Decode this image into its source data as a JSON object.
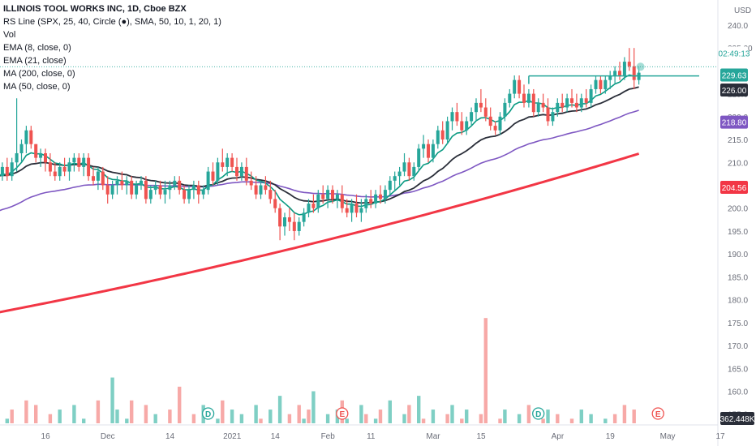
{
  "header": {
    "symbol_title": "ILLINOIS TOOL WORKS INC, 1D, Cboe BZX",
    "indicators": [
      "RS Line (SPX, 25, 40, Circle (●), SMA, 50, 10, 1, 20, 1)",
      "Vol",
      "EMA (8, close, 0)",
      "EMA (21, close)",
      "MA (200, close, 0)",
      "MA (50, close, 0)"
    ]
  },
  "axis": {
    "currency": "USD",
    "price_ticks": [
      "240.0",
      "235.00",
      "230.0",
      "225.0",
      "220.0",
      "215.0",
      "210.0",
      "205.0",
      "200.0",
      "195.0",
      "190.0",
      "185.0",
      "180.0",
      "175.0",
      "170.0",
      "165.0",
      "160.0",
      "155.0"
    ],
    "price_tick_values": [
      240,
      235,
      230,
      225,
      220,
      215,
      210,
      205,
      200,
      195,
      190,
      185,
      180,
      175,
      170,
      165,
      160,
      155
    ],
    "date_ticks": [
      "v",
      "16",
      "Dec",
      "14",
      "2021",
      "14",
      "Feb",
      "11",
      "Mar",
      "15",
      "Apr",
      "19",
      "May",
      "17"
    ],
    "date_tick_bars": [
      -1,
      9,
      22,
      35,
      48,
      57,
      68,
      77,
      90,
      100,
      116,
      127,
      139,
      150
    ]
  },
  "price_labels": {
    "countdown": "02:49:13",
    "last_price": "229.63",
    "ema21": "226.00",
    "ma50": "218.80",
    "ma200": "204.56",
    "volume": "362.448K"
  },
  "event_markers": [
    {
      "label": "D",
      "bar": 44
    },
    {
      "label": "E",
      "bar": 72
    },
    {
      "label": "D",
      "bar": 113
    },
    {
      "label": "E",
      "bar": 138
    }
  ],
  "colors": {
    "up": "#26a69a",
    "down": "#ef5350",
    "vol_up": "#7fcfc4",
    "vol_down": "#f7a9a7",
    "ema8": "#089981",
    "ema21": "#2a2e39",
    "ma50": "#7e57c2",
    "ma200": "#f23645",
    "resistance": "#26a69a"
  },
  "chart_data": {
    "type": "candlestick",
    "x_axis": "trading days, Nov 2020 – May 2021",
    "y_range": [
      153,
      243
    ],
    "resistance_level": 228.9,
    "ohlc": [
      [
        206,
        208,
        204,
        207
      ],
      [
        207,
        210,
        206,
        209
      ],
      [
        209,
        211,
        206,
        207
      ],
      [
        207,
        211,
        206,
        210
      ],
      [
        210,
        224,
        208,
        212
      ],
      [
        212,
        215,
        210,
        214
      ],
      [
        214,
        218,
        212,
        217
      ],
      [
        217,
        218,
        213,
        214
      ],
      [
        214,
        214,
        210,
        211
      ],
      [
        211,
        213,
        209,
        212
      ],
      [
        212,
        213,
        208,
        210
      ],
      [
        210,
        212,
        207,
        208
      ],
      [
        208,
        210,
        206,
        207
      ],
      [
        207,
        210,
        206,
        209
      ],
      [
        209,
        211,
        207,
        208
      ],
      [
        208,
        211,
        206,
        210
      ],
      [
        210,
        212,
        208,
        211
      ],
      [
        211,
        212,
        208,
        209
      ],
      [
        209,
        212,
        207,
        211
      ],
      [
        211,
        212,
        206,
        207
      ],
      [
        207,
        209,
        205,
        206
      ],
      [
        206,
        209,
        204,
        208
      ],
      [
        208,
        209,
        204,
        205
      ],
      [
        205,
        207,
        201,
        203
      ],
      [
        203,
        206,
        202,
        205
      ],
      [
        205,
        207,
        203,
        206
      ],
      [
        206,
        208,
        204,
        205
      ],
      [
        205,
        207,
        203,
        206
      ],
      [
        206,
        207,
        202,
        203
      ],
      [
        203,
        206,
        202,
        205
      ],
      [
        205,
        207,
        204,
        206
      ],
      [
        206,
        207,
        201,
        202
      ],
      [
        202,
        205,
        201,
        204
      ],
      [
        204,
        206,
        203,
        205
      ],
      [
        205,
        206,
        202,
        203
      ],
      [
        203,
        206,
        201,
        204
      ],
      [
        204,
        206,
        202,
        205
      ],
      [
        205,
        207,
        204,
        206
      ],
      [
        206,
        207,
        203,
        204
      ],
      [
        204,
        205,
        201,
        202
      ],
      [
        202,
        205,
        201,
        204
      ],
      [
        204,
        206,
        202,
        205
      ],
      [
        205,
        206,
        201,
        203
      ],
      [
        203,
        205,
        202,
        204
      ],
      [
        204,
        209,
        203,
        208
      ],
      [
        208,
        210,
        205,
        206
      ],
      [
        206,
        211,
        205,
        210
      ],
      [
        210,
        213,
        208,
        209
      ],
      [
        209,
        212,
        207,
        211
      ],
      [
        211,
        212,
        208,
        209
      ],
      [
        209,
        211,
        206,
        207
      ],
      [
        207,
        210,
        206,
        209
      ],
      [
        209,
        211,
        205,
        206
      ],
      [
        206,
        208,
        204,
        205
      ],
      [
        205,
        207,
        202,
        203
      ],
      [
        203,
        206,
        202,
        205
      ],
      [
        205,
        207,
        203,
        204
      ],
      [
        204,
        206,
        201,
        202
      ],
      [
        202,
        204,
        199,
        200
      ],
      [
        200,
        201,
        193,
        196
      ],
      [
        196,
        199,
        194,
        198
      ],
      [
        198,
        200,
        195,
        197
      ],
      [
        197,
        199,
        193,
        195
      ],
      [
        195,
        198,
        194,
        197
      ],
      [
        197,
        200,
        196,
        199
      ],
      [
        199,
        202,
        198,
        201
      ],
      [
        201,
        203,
        199,
        200
      ],
      [
        200,
        204,
        199,
        203
      ],
      [
        203,
        205,
        201,
        202
      ],
      [
        202,
        205,
        200,
        204
      ],
      [
        204,
        205,
        201,
        202
      ],
      [
        202,
        204,
        200,
        203
      ],
      [
        203,
        205,
        199,
        200
      ],
      [
        200,
        202,
        198,
        199
      ],
      [
        199,
        202,
        197,
        201
      ],
      [
        201,
        203,
        198,
        199
      ],
      [
        199,
        202,
        197,
        200
      ],
      [
        200,
        203,
        199,
        202
      ],
      [
        202,
        204,
        200,
        201
      ],
      [
        201,
        204,
        200,
        203
      ],
      [
        203,
        205,
        201,
        202
      ],
      [
        202,
        205,
        201,
        204
      ],
      [
        204,
        207,
        203,
        206
      ],
      [
        206,
        208,
        204,
        207
      ],
      [
        207,
        209,
        205,
        208
      ],
      [
        208,
        212,
        207,
        210
      ],
      [
        210,
        211,
        206,
        207
      ],
      [
        207,
        210,
        206,
        209
      ],
      [
        209,
        214,
        208,
        213
      ],
      [
        213,
        216,
        211,
        214
      ],
      [
        214,
        215,
        210,
        211
      ],
      [
        211,
        215,
        210,
        214
      ],
      [
        214,
        218,
        213,
        217
      ],
      [
        217,
        219,
        214,
        215
      ],
      [
        215,
        220,
        214,
        219
      ],
      [
        219,
        222,
        217,
        221
      ],
      [
        221,
        223,
        218,
        219
      ],
      [
        219,
        221,
        216,
        217
      ],
      [
        217,
        220,
        216,
        219
      ],
      [
        219,
        222,
        218,
        221
      ],
      [
        221,
        224,
        219,
        223
      ],
      [
        223,
        226,
        221,
        222
      ],
      [
        222,
        224,
        219,
        220
      ],
      [
        220,
        222,
        217,
        218
      ],
      [
        218,
        219,
        216,
        217
      ],
      [
        217,
        221,
        216,
        220
      ],
      [
        220,
        224,
        219,
        223
      ],
      [
        223,
        226,
        222,
        225
      ],
      [
        225,
        229,
        224,
        228
      ],
      [
        228,
        229,
        224,
        225
      ],
      [
        225,
        227,
        222,
        223
      ],
      [
        223,
        226,
        222,
        225
      ],
      [
        225,
        226,
        220,
        221
      ],
      [
        221,
        224,
        220,
        223
      ],
      [
        223,
        225,
        221,
        222
      ],
      [
        222,
        224,
        218,
        219
      ],
      [
        219,
        222,
        218,
        221
      ],
      [
        221,
        224,
        220,
        223
      ],
      [
        223,
        225,
        221,
        222
      ],
      [
        222,
        225,
        221,
        224
      ],
      [
        224,
        226,
        222,
        223
      ],
      [
        223,
        225,
        221,
        222
      ],
      [
        222,
        225,
        221,
        224
      ],
      [
        224,
        226,
        222,
        223
      ],
      [
        223,
        227,
        222,
        226
      ],
      [
        226,
        229,
        225,
        228
      ],
      [
        228,
        229,
        225,
        226
      ],
      [
        226,
        229,
        225,
        228
      ],
      [
        228,
        230,
        226,
        229
      ],
      [
        229,
        231,
        227,
        230
      ],
      [
        230,
        232,
        228,
        229
      ],
      [
        229,
        233,
        228,
        232
      ],
      [
        232,
        235,
        230,
        231
      ],
      [
        231,
        235,
        226,
        228
      ],
      [
        228,
        231,
        227,
        229.6
      ]
    ],
    "volume": [
      [
        155,
        true
      ],
      [
        152,
        false
      ],
      [
        154,
        true
      ],
      [
        156,
        false
      ],
      [
        153,
        true
      ],
      [
        150,
        true
      ],
      [
        158,
        false
      ],
      [
        152,
        true
      ],
      [
        157,
        false
      ],
      [
        151,
        true
      ],
      [
        149,
        true
      ],
      [
        155,
        false
      ],
      [
        152,
        true
      ],
      [
        156,
        true
      ],
      [
        150,
        false
      ],
      [
        153,
        true
      ],
      [
        157,
        true
      ],
      [
        151,
        false
      ],
      [
        154,
        true
      ],
      [
        148,
        false
      ],
      [
        152,
        true
      ],
      [
        158,
        false
      ],
      [
        150,
        true
      ],
      [
        149,
        false
      ],
      [
        163,
        true
      ],
      [
        156,
        true
      ],
      [
        152,
        false
      ],
      [
        154,
        true
      ],
      [
        158,
        false
      ],
      [
        151,
        true
      ],
      [
        153,
        true
      ],
      [
        157,
        false
      ],
      [
        150,
        true
      ],
      [
        155,
        true
      ],
      [
        152,
        false
      ],
      [
        149,
        true
      ],
      [
        156,
        false
      ],
      [
        153,
        true
      ],
      [
        161,
        false
      ],
      [
        150,
        true
      ],
      [
        152,
        true
      ],
      [
        155,
        false
      ],
      [
        151,
        true
      ],
      [
        157,
        true
      ],
      [
        153,
        false
      ],
      [
        150,
        true
      ],
      [
        154,
        true
      ],
      [
        158,
        false
      ],
      [
        152,
        true
      ],
      [
        156,
        true
      ],
      [
        151,
        false
      ],
      [
        155,
        true
      ],
      [
        153,
        true
      ],
      [
        150,
        false
      ],
      [
        157,
        true
      ],
      [
        154,
        false
      ],
      [
        152,
        true
      ],
      [
        156,
        true
      ],
      [
        151,
        false
      ],
      [
        159,
        true
      ],
      [
        153,
        true
      ],
      [
        155,
        false
      ],
      [
        152,
        true
      ],
      [
        157,
        false
      ],
      [
        154,
        true
      ],
      [
        156,
        false
      ],
      [
        160,
        true
      ],
      [
        153,
        true
      ],
      [
        151,
        false
      ],
      [
        155,
        true
      ],
      [
        152,
        false
      ],
      [
        156,
        true
      ],
      [
        158,
        false
      ],
      [
        154,
        true
      ],
      [
        150,
        true
      ],
      [
        153,
        false
      ],
      [
        157,
        true
      ],
      [
        155,
        false
      ],
      [
        151,
        true
      ],
      [
        154,
        true
      ],
      [
        156,
        false
      ],
      [
        152,
        true
      ],
      [
        158,
        true
      ],
      [
        153,
        false
      ],
      [
        150,
        true
      ],
      [
        155,
        true
      ],
      [
        157,
        false
      ],
      [
        152,
        true
      ],
      [
        159,
        true
      ],
      [
        154,
        false
      ],
      [
        151,
        true
      ],
      [
        156,
        true
      ],
      [
        153,
        false
      ],
      [
        150,
        true
      ],
      [
        155,
        false
      ],
      [
        157,
        true
      ],
      [
        152,
        true
      ],
      [
        154,
        false
      ],
      [
        156,
        true
      ],
      [
        151,
        true
      ],
      [
        153,
        true
      ],
      [
        155,
        false
      ],
      [
        176,
        false
      ],
      [
        152,
        true
      ],
      [
        150,
        true
      ],
      [
        154,
        false
      ],
      [
        156,
        true
      ],
      [
        153,
        true
      ],
      [
        151,
        false
      ],
      [
        155,
        true
      ],
      [
        152,
        true
      ],
      [
        157,
        false
      ],
      [
        153,
        true
      ],
      [
        150,
        true
      ],
      [
        154,
        false
      ],
      [
        156,
        true
      ],
      [
        152,
        true
      ],
      [
        155,
        false
      ],
      [
        153,
        true
      ],
      [
        151,
        true
      ],
      [
        154,
        false
      ],
      [
        150,
        true
      ],
      [
        156,
        true
      ],
      [
        152,
        false
      ],
      [
        155,
        true
      ],
      [
        153,
        true
      ],
      [
        151,
        false
      ],
      [
        154,
        true
      ],
      [
        152,
        true
      ],
      [
        155,
        false
      ],
      [
        150,
        true
      ],
      [
        157,
        false
      ],
      [
        153,
        true
      ],
      [
        156,
        false
      ],
      [
        152,
        true
      ]
    ]
  }
}
